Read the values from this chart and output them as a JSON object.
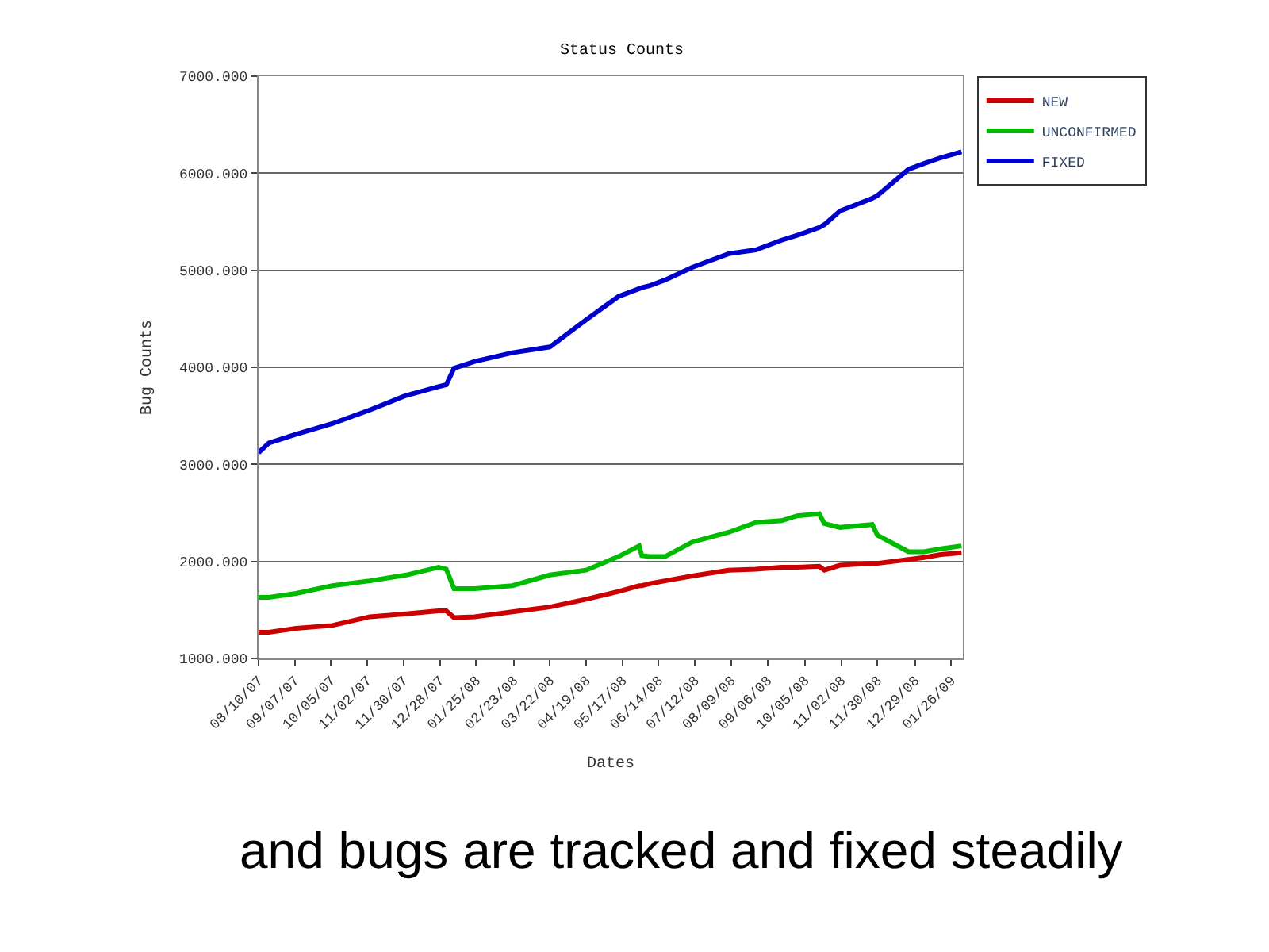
{
  "chart_data": {
    "type": "line",
    "title": "Status Counts",
    "xlabel": "Dates",
    "ylabel": "Bug Counts",
    "x": [
      "2007-08-10",
      "2007-08-18",
      "2007-09-08",
      "2007-10-06",
      "2007-11-04",
      "2007-12-02",
      "2007-12-27",
      "2008-01-02",
      "2008-01-08",
      "2008-01-24",
      "2008-02-22",
      "2008-03-22",
      "2008-04-19",
      "2008-05-14",
      "2008-05-30",
      "2008-06-01",
      "2008-06-07",
      "2008-06-19",
      "2008-07-10",
      "2008-08-07",
      "2008-08-28",
      "2008-09-17",
      "2008-09-29",
      "2008-10-16",
      "2008-10-20",
      "2008-11-01",
      "2008-11-26",
      "2008-11-30",
      "2008-12-24",
      "2009-01-05",
      "2009-01-18",
      "2009-02-03"
    ],
    "series": [
      {
        "name": "NEW",
        "color": "#cc0000",
        "values": [
          1270,
          1270,
          1310,
          1340,
          1430,
          1460,
          1490,
          1490,
          1420,
          1430,
          1480,
          1530,
          1610,
          1690,
          1750,
          1750,
          1770,
          1800,
          1850,
          1910,
          1920,
          1940,
          1940,
          1950,
          1910,
          1960,
          1980,
          1980,
          2020,
          2040,
          2070,
          2090
        ]
      },
      {
        "name": "UNCONFIRMED",
        "color": "#00bb00",
        "values": [
          1630,
          1630,
          1670,
          1750,
          1800,
          1860,
          1940,
          1920,
          1720,
          1720,
          1750,
          1860,
          1910,
          2050,
          2160,
          2060,
          2050,
          2050,
          2200,
          2300,
          2400,
          2420,
          2470,
          2490,
          2390,
          2350,
          2380,
          2270,
          2100,
          2100,
          2130,
          2160
        ]
      },
      {
        "name": "FIXED",
        "color": "#0000cc",
        "values": [
          3120,
          3220,
          3310,
          3420,
          3560,
          3710,
          3800,
          3820,
          3990,
          4060,
          4150,
          4210,
          4490,
          4730,
          4810,
          4820,
          4840,
          4900,
          5030,
          5170,
          5210,
          5310,
          5360,
          5440,
          5470,
          5610,
          5740,
          5770,
          6040,
          6100,
          6160,
          6220
        ]
      }
    ],
    "xlim": [
      "2007-08-10",
      "2009-02-04"
    ],
    "xticks": [
      {
        "value": "2007-08-10",
        "label": "08/10/07"
      },
      {
        "value": "2007-09-07",
        "label": "09/07/07"
      },
      {
        "value": "2007-10-05",
        "label": "10/05/07"
      },
      {
        "value": "2007-11-02",
        "label": "11/02/07"
      },
      {
        "value": "2007-11-30",
        "label": "11/30/07"
      },
      {
        "value": "2007-12-28",
        "label": "12/28/07"
      },
      {
        "value": "2008-01-25",
        "label": "01/25/08"
      },
      {
        "value": "2008-02-23",
        "label": "02/23/08"
      },
      {
        "value": "2008-03-22",
        "label": "03/22/08"
      },
      {
        "value": "2008-04-19",
        "label": "04/19/08"
      },
      {
        "value": "2008-05-17",
        "label": "05/17/08"
      },
      {
        "value": "2008-06-14",
        "label": "06/14/08"
      },
      {
        "value": "2008-07-12",
        "label": "07/12/08"
      },
      {
        "value": "2008-08-09",
        "label": "08/09/08"
      },
      {
        "value": "2008-09-06",
        "label": "09/06/08"
      },
      {
        "value": "2008-10-05",
        "label": "10/05/08"
      },
      {
        "value": "2008-11-02",
        "label": "11/02/08"
      },
      {
        "value": "2008-11-30",
        "label": "11/30/08"
      },
      {
        "value": "2008-12-29",
        "label": "12/29/08"
      },
      {
        "value": "2009-01-26",
        "label": "01/26/09"
      }
    ],
    "ylim": [
      1000,
      7000
    ],
    "yticks": [
      {
        "value": 1000,
        "label": "1000.000"
      },
      {
        "value": 2000,
        "label": "2000.000"
      },
      {
        "value": 3000,
        "label": "3000.000"
      },
      {
        "value": 4000,
        "label": "4000.000"
      },
      {
        "value": 5000,
        "label": "5000.000"
      },
      {
        "value": 6000,
        "label": "6000.000"
      },
      {
        "value": 7000,
        "label": "7000.000"
      }
    ],
    "grid": "y",
    "legend": "top right",
    "marker": "none",
    "line_style": "solid",
    "annotations": [
      "and bugs are tracked and fixed steadily"
    ]
  }
}
